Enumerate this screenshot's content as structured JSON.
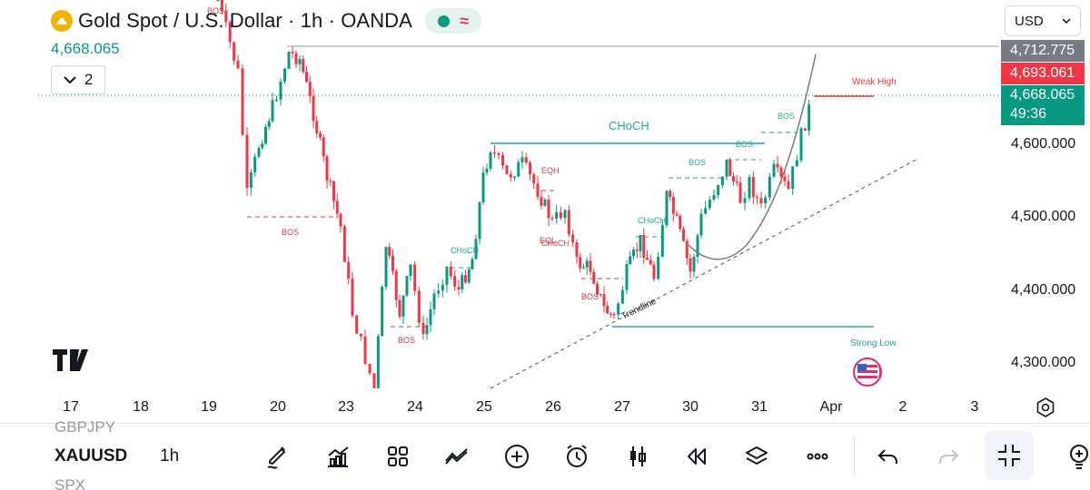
{
  "header": {
    "title": "Gold Spot / U.S. Dollar · 1h · OANDA",
    "last_price": "4,668.065",
    "indicator_count": "2",
    "currency": "USD"
  },
  "price_scale": {
    "ticks": [
      "4,600.000",
      "4,500.000",
      "4,400.000",
      "4,300.000"
    ],
    "tags": [
      {
        "label": "4,712.775",
        "color": "#787b86"
      },
      {
        "label": "4,693.061",
        "color": "#f23645"
      },
      {
        "label": "4,668.065",
        "color": "#089981"
      },
      {
        "label": "49:36",
        "color": "#089981"
      }
    ]
  },
  "time_axis": {
    "ticks": [
      "17",
      "18",
      "19",
      "20",
      "23",
      "24",
      "25",
      "26",
      "27",
      "30",
      "31",
      "Apr",
      "2",
      "3"
    ]
  },
  "annotations": {
    "choch_main": "CHoCH",
    "weak_high": "Weak High",
    "strong_low": "Strong Low",
    "trendline": "Trendline",
    "eqh": "EQH",
    "eql": "EQL",
    "bos_labels": [
      "BOS",
      "BOS",
      "BOS",
      "BOS",
      "BOS",
      "BOS",
      "BOS"
    ],
    "choch_labels": [
      "CHoCH",
      "CHoCH",
      "CHoCH"
    ]
  },
  "colors": {
    "up": "#089981",
    "down": "#f23645",
    "bos": "#c93b48",
    "structure": "#26a69a",
    "background": "#ffffff"
  },
  "bottom_bar": {
    "watch_prev": "GBPJPY",
    "symbol": "XAUUSD",
    "interval": "1h",
    "watch_next": "SPX",
    "tools": [
      "draw-icon",
      "indicators-icon",
      "layouts-icon",
      "compare-icon",
      "add-icon",
      "alert-icon",
      "candle-style-icon",
      "replay-icon",
      "layers-icon",
      "more-icon",
      "undo-icon",
      "redo-icon",
      "fullscreen-icon",
      "ideas-icon"
    ]
  }
}
